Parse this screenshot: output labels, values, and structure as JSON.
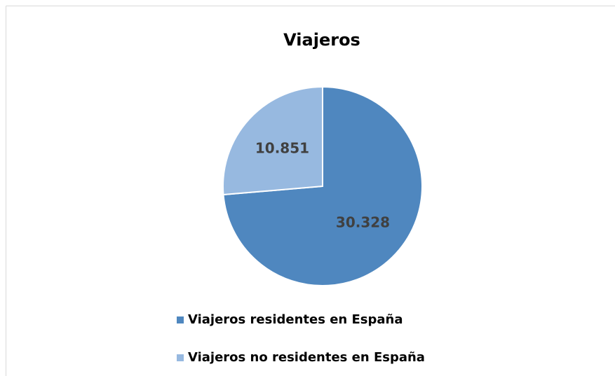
{
  "chart_data": {
    "type": "pie",
    "title": "Viajeros",
    "categories": [
      "Viajeros residentes en España",
      "Viajeros no residentes en España"
    ],
    "values": [
      30328,
      10851
    ],
    "value_labels": [
      "30.328",
      "10.851"
    ],
    "colors": [
      "#4f87bf",
      "#97b9e0"
    ],
    "legend": "bottom"
  }
}
